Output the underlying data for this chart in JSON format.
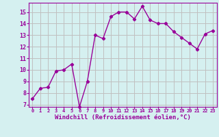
{
  "x": [
    0,
    1,
    2,
    3,
    4,
    5,
    6,
    7,
    8,
    9,
    10,
    11,
    12,
    13,
    14,
    15,
    16,
    17,
    18,
    19,
    20,
    21,
    22,
    23
  ],
  "y": [
    7.5,
    8.4,
    8.5,
    9.9,
    10.0,
    10.5,
    6.8,
    9.0,
    13.0,
    12.7,
    14.6,
    15.0,
    15.0,
    14.4,
    15.5,
    14.3,
    14.0,
    14.0,
    13.3,
    12.8,
    12.3,
    11.8,
    13.1,
    13.4
  ],
  "line_color": "#990099",
  "marker": "D",
  "markersize": 2.2,
  "linewidth": 1.0,
  "xlabel": "Windchill (Refroidissement éolien,°C)",
  "xlabel_fontsize": 6.5,
  "xlim": [
    -0.5,
    23.5
  ],
  "ylim": [
    6.8,
    15.8
  ],
  "yticks": [
    7,
    8,
    9,
    10,
    11,
    12,
    13,
    14,
    15
  ],
  "xticks": [
    0,
    1,
    2,
    3,
    4,
    5,
    6,
    7,
    8,
    9,
    10,
    11,
    12,
    13,
    14,
    15,
    16,
    17,
    18,
    19,
    20,
    21,
    22,
    23
  ],
  "xtick_fontsize": 5.0,
  "ytick_fontsize": 6.0,
  "bg_color": "#d5f0f0",
  "grid_color": "#c0c0c0",
  "line_border_color": "#990099",
  "tick_color": "#990099",
  "label_color": "#990099"
}
